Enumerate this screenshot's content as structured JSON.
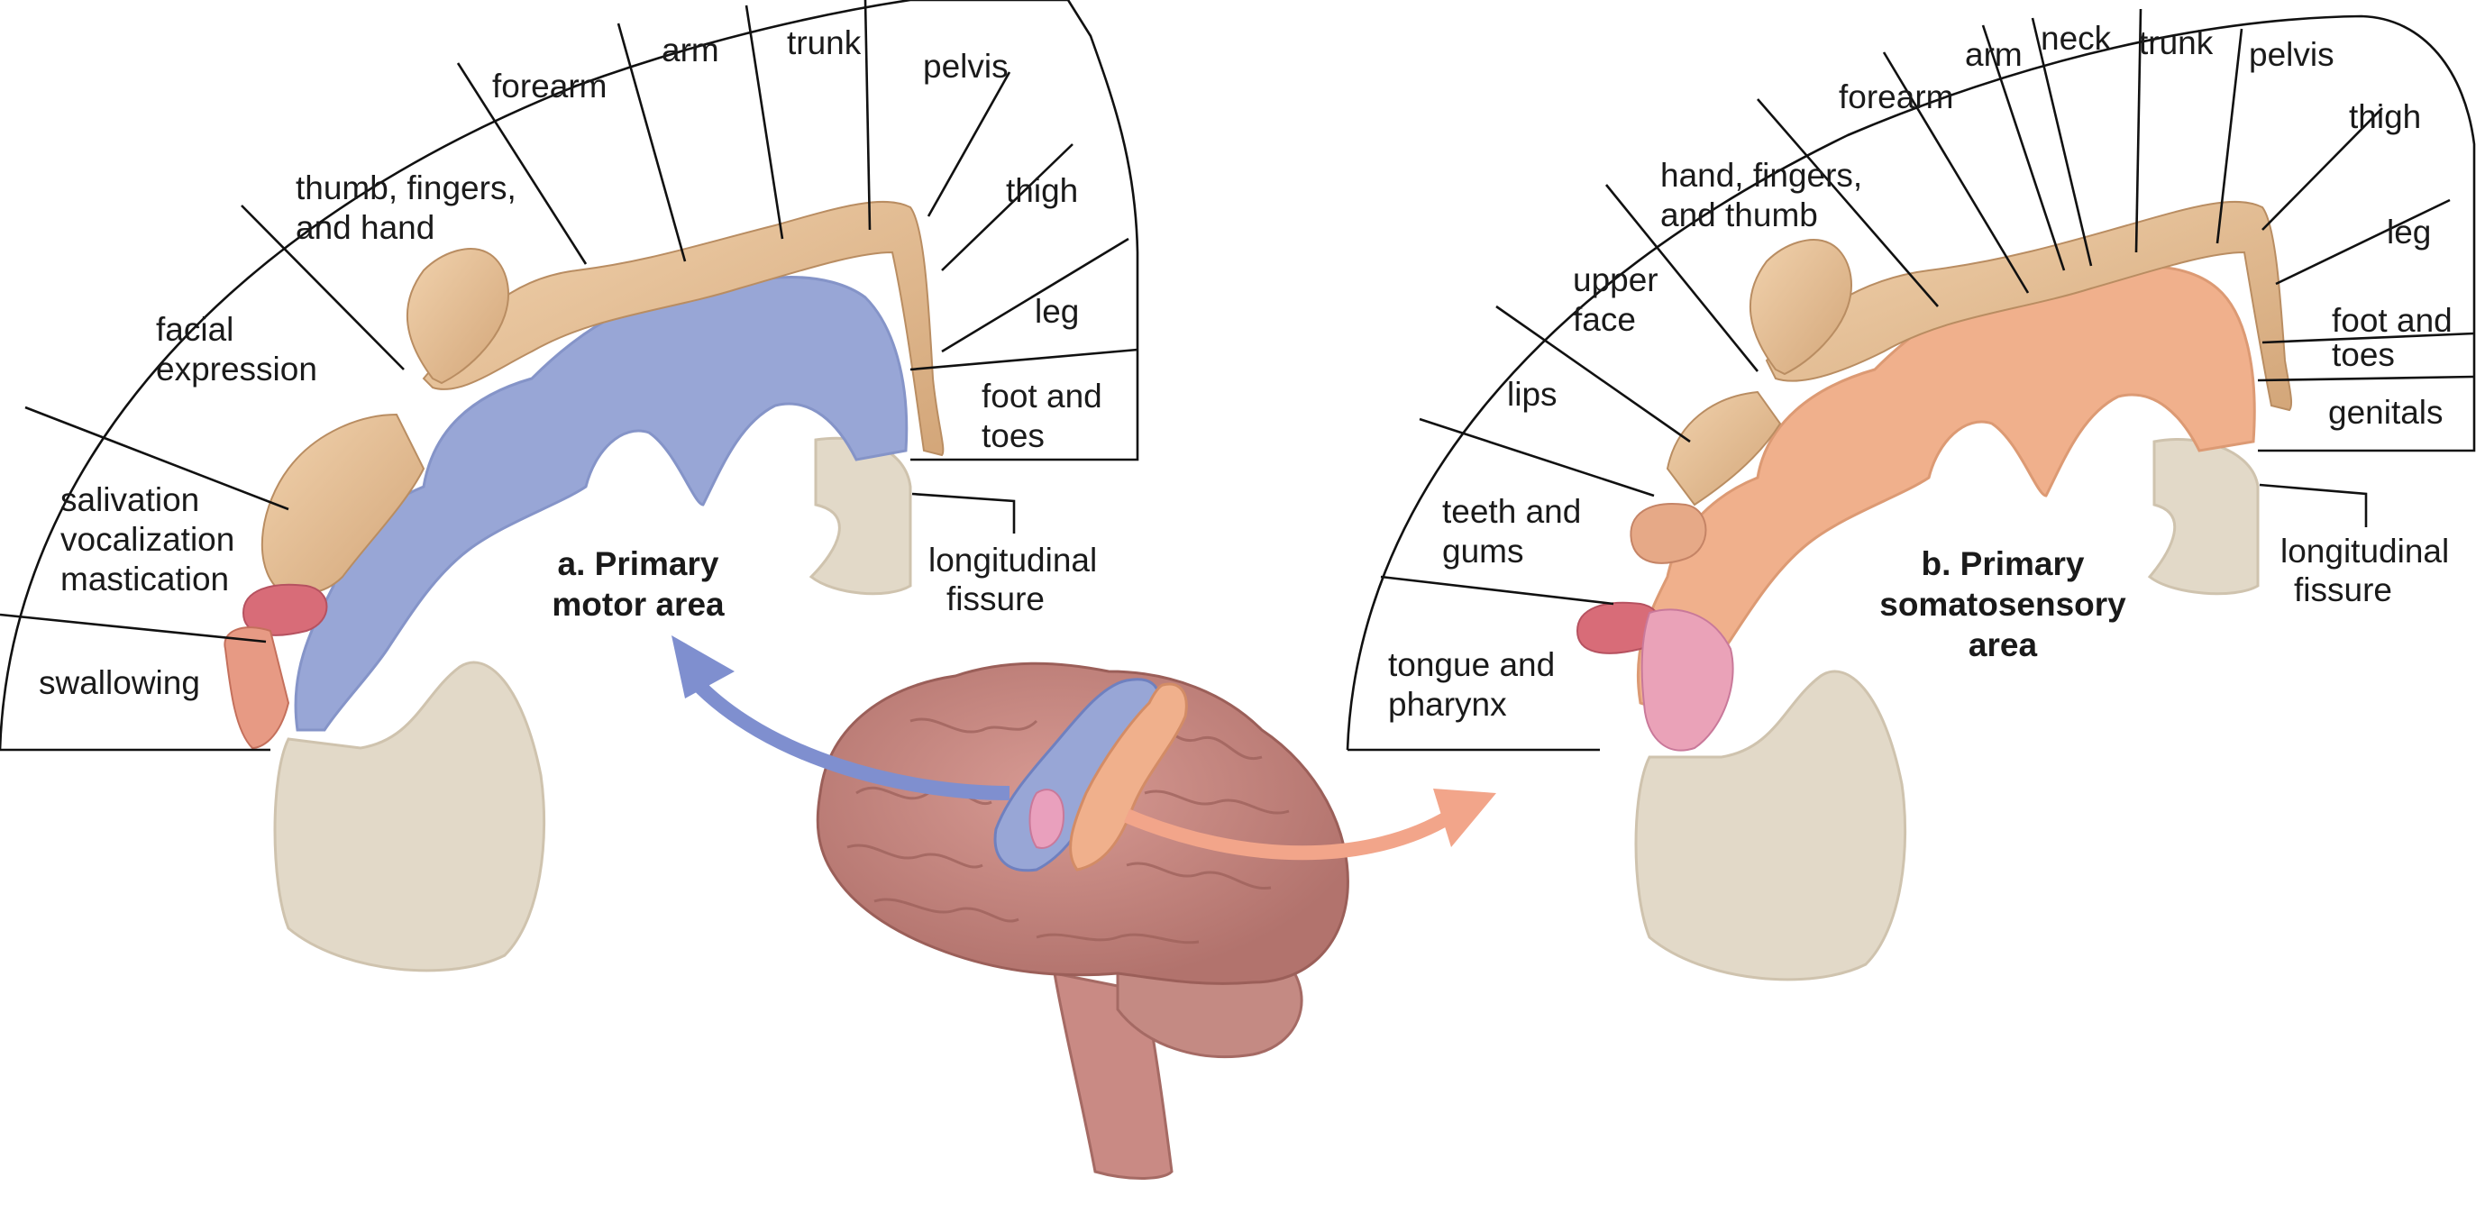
{
  "diagram": {
    "motor": {
      "title_line1": "a. Primary",
      "title_line2": "motor area",
      "sectors": [
        {
          "lines": [
            "swallowing"
          ]
        },
        {
          "lines": [
            "salivation",
            "vocalization",
            "mastication"
          ]
        },
        {
          "lines": [
            "facial",
            "expression"
          ]
        },
        {
          "lines": [
            "thumb, fingers,",
            "and hand"
          ]
        },
        {
          "lines": [
            "forearm"
          ]
        },
        {
          "lines": [
            "arm"
          ]
        },
        {
          "lines": [
            "trunk"
          ]
        },
        {
          "lines": [
            "pelvis"
          ]
        },
        {
          "lines": [
            "thigh"
          ]
        },
        {
          "lines": [
            "leg"
          ]
        },
        {
          "lines": [
            "foot and",
            "toes"
          ]
        }
      ],
      "fissure_line1": "longitudinal",
      "fissure_line2": "fissure"
    },
    "sensory": {
      "title_line1": "b. Primary",
      "title_line2": "somatosensory",
      "title_line3": "area",
      "sectors": [
        {
          "lines": [
            "tongue and",
            "pharynx"
          ]
        },
        {
          "lines": [
            "teeth and",
            "gums"
          ]
        },
        {
          "lines": [
            "lips"
          ]
        },
        {
          "lines": [
            "upper",
            "face"
          ]
        },
        {
          "lines": [
            "hand, fingers,",
            "and thumb"
          ]
        },
        {
          "lines": [
            "forearm"
          ]
        },
        {
          "lines": [
            "arm"
          ]
        },
        {
          "lines": [
            "neck"
          ]
        },
        {
          "lines": [
            "trunk"
          ]
        },
        {
          "lines": [
            "pelvis"
          ]
        },
        {
          "lines": [
            "thigh"
          ]
        },
        {
          "lines": [
            "leg"
          ]
        },
        {
          "lines": [
            "foot and",
            "toes"
          ]
        },
        {
          "lines": [
            "genitals"
          ]
        }
      ],
      "fissure_line1": "longitudinal",
      "fissure_line2": "fissure"
    },
    "colors": {
      "motor_cortex": "#98a6d6",
      "sensory_cortex": "#f0b08c",
      "brain": "#c98a84",
      "white_matter": "#e4dccd",
      "skin": "#e9c29a",
      "motor_arrow": "#7f8fcf",
      "sensory_arrow": "#f2a58a"
    }
  }
}
